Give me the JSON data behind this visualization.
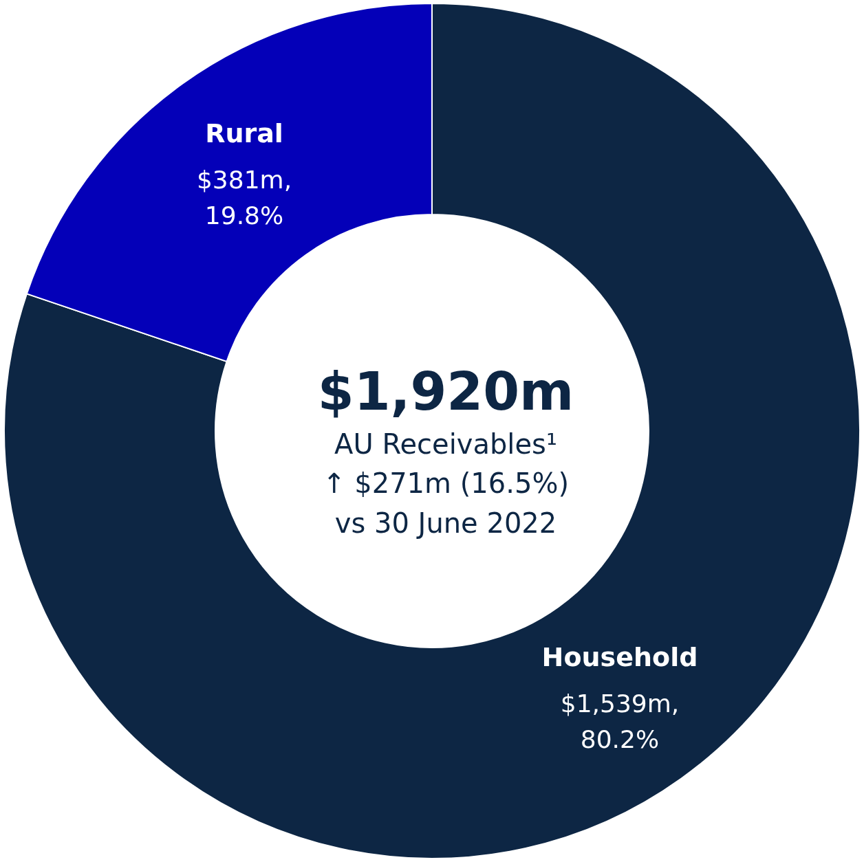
{
  "chart_data": {
    "type": "donut",
    "categories": [
      "Household",
      "Rural"
    ],
    "values": [
      80.2,
      19.8
    ],
    "colors": [
      "#0d2644",
      "#0400b8"
    ],
    "value_labels": [
      "$1,539m, 80.2%",
      "$381m, 19.8%"
    ],
    "annotations": [
      "$1,920m",
      "AU Receivables¹",
      "↑ $271m (16.5%)",
      "vs 30 June 2022"
    ]
  }
}
